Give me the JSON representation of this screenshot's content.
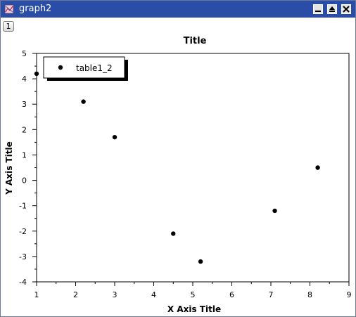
{
  "window": {
    "title": "graph2",
    "title_bar_color": "#2a4ea8",
    "buttons": [
      "minimize-icon",
      "maximize-icon",
      "close-icon"
    ]
  },
  "layer_tab": {
    "label": "1"
  },
  "legend": {
    "entries": [
      "table1_2"
    ]
  },
  "chart_data": {
    "type": "scatter",
    "title": "Title",
    "xlabel": "X Axis Title",
    "ylabel": "Y Axis Title",
    "xlim": [
      1,
      9
    ],
    "ylim": [
      -4,
      5
    ],
    "xticks": [
      "1",
      "2",
      "3",
      "4",
      "5",
      "6",
      "7",
      "8",
      "9"
    ],
    "yticks": [
      "5",
      "4",
      "3",
      "2",
      "1",
      "0",
      "-1",
      "-2",
      "-3",
      "-4"
    ],
    "grid": false,
    "legend_position": "top-left",
    "series": [
      {
        "name": "table1_2",
        "color": "#000000",
        "x": [
          1.0,
          2.2,
          3.0,
          4.5,
          5.2,
          7.1,
          8.2
        ],
        "y": [
          4.2,
          3.1,
          1.7,
          -2.1,
          -3.2,
          -1.2,
          0.5
        ]
      }
    ]
  }
}
